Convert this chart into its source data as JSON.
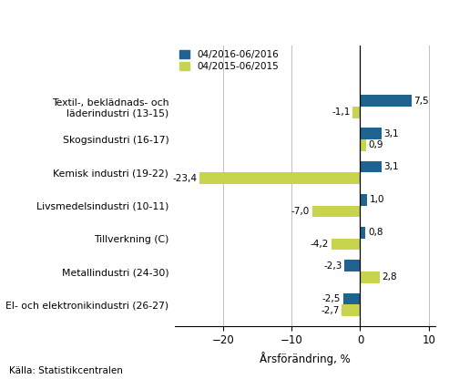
{
  "categories": [
    "El- och elektronikindustri (26-27)",
    "Metallindustri (24-30)",
    "Tillverkning (C)",
    "Livsmedelsindustri (10-11)",
    "Kemisk industri (19-22)",
    "Skogsindustri (16-17)",
    "Textil-, beklädnads- och\nläderindustri (13-15)"
  ],
  "values_2016": [
    -2.5,
    -2.3,
    0.8,
    1.0,
    3.1,
    3.1,
    7.5
  ],
  "values_2015": [
    -2.7,
    2.8,
    -4.2,
    -7.0,
    -23.4,
    0.9,
    -1.1
  ],
  "color_2016": "#1F6391",
  "color_2015": "#C8D44E",
  "legend_2016": "04/2016-06/2016",
  "legend_2015": "04/2015-06/2015",
  "xlabel": "Årsförändring, %",
  "source": "Källa: Statistikcentralen",
  "xlim": [
    -27,
    11
  ],
  "xticks": [
    -20,
    -10,
    0,
    10
  ],
  "bar_height": 0.35,
  "fig_width": 4.93,
  "fig_height": 4.16,
  "dpi": 100
}
